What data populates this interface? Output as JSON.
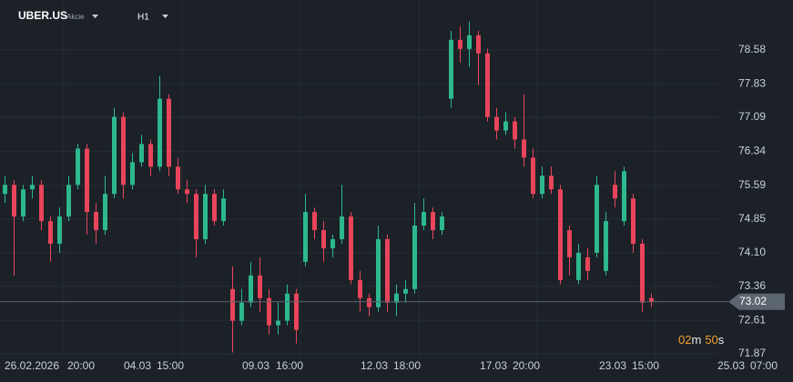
{
  "chart_data": {
    "type": "candlestick",
    "symbol": "UBER.US",
    "instrument_type": "Akcie",
    "timeframe": "H1",
    "up_color": "#2db88e",
    "down_color": "#e8455b",
    "open": [
      75.4,
      75.6,
      74.9,
      75.5,
      75.6,
      74.8,
      74.3,
      74.9,
      75.6,
      76.4,
      75.0,
      74.6,
      75.4,
      77.1,
      75.6,
      76.1,
      76.5,
      76.0,
      77.5,
      76.0,
      75.5,
      75.4,
      74.4,
      75.4,
      74.8,
      73.3,
      72.6,
      73.0,
      73.6,
      73.1,
      72.5,
      72.6,
      73.2,
      73.9,
      75.0,
      74.6,
      74.2,
      74.4,
      74.9,
      73.5,
      73.1,
      72.9,
      74.4,
      73.0,
      73.2,
      73.3,
      74.7,
      75.0,
      74.6,
      77.5,
      78.8,
      78.6,
      78.9,
      78.5,
      77.1,
      76.8,
      77.0,
      76.6,
      76.2,
      75.4,
      75.8,
      75.5,
      74.6,
      73.5,
      74.0,
      74.1,
      73.7,
      75.6,
      74.8,
      75.3,
      74.3,
      73.1
    ],
    "high": [
      75.8,
      75.7,
      75.6,
      75.8,
      75.7,
      74.9,
      75.1,
      75.8,
      76.5,
      76.5,
      75.2,
      75.8,
      77.3,
      77.2,
      76.3,
      76.7,
      76.6,
      78.0,
      77.6,
      76.2,
      75.7,
      75.5,
      75.6,
      75.5,
      75.5,
      73.8,
      73.3,
      73.9,
      74.0,
      73.3,
      73.0,
      73.4,
      73.3,
      75.4,
      75.1,
      74.8,
      74.5,
      75.6,
      75.0,
      73.7,
      73.2,
      74.7,
      74.5,
      73.4,
      73.5,
      75.2,
      75.3,
      75.1,
      75.0,
      79.0,
      79.1,
      79.2,
      79.0,
      78.6,
      77.3,
      77.2,
      77.1,
      77.6,
      76.4,
      76.0,
      76.0,
      75.6,
      74.7,
      74.3,
      74.2,
      75.8,
      75.0,
      75.9,
      76.0,
      75.4,
      74.4,
      73.2
    ],
    "low": [
      75.2,
      73.6,
      74.8,
      75.3,
      74.6,
      73.9,
      74.1,
      74.8,
      75.5,
      74.5,
      74.3,
      74.5,
      75.3,
      75.3,
      75.5,
      76.0,
      75.8,
      75.9,
      75.8,
      75.4,
      75.2,
      74.0,
      74.3,
      74.7,
      74.7,
      71.9,
      72.5,
      72.9,
      72.8,
      72.3,
      72.3,
      72.5,
      72.1,
      73.8,
      74.4,
      73.9,
      74.0,
      74.3,
      73.4,
      72.8,
      72.7,
      72.8,
      72.8,
      72.7,
      73.0,
      73.2,
      74.6,
      74.4,
      74.5,
      77.3,
      78.3,
      78.2,
      77.8,
      77.0,
      76.6,
      76.7,
      76.4,
      76.0,
      75.3,
      75.3,
      75.4,
      73.4,
      73.6,
      73.4,
      73.5,
      74.0,
      73.6,
      75.1,
      74.7,
      74.1,
      72.8,
      72.9
    ],
    "close": [
      75.6,
      74.9,
      75.5,
      75.6,
      74.8,
      74.3,
      74.9,
      75.6,
      76.4,
      75.0,
      74.6,
      75.4,
      77.1,
      75.6,
      76.1,
      76.5,
      76.0,
      77.5,
      76.0,
      75.5,
      75.4,
      74.4,
      75.4,
      74.8,
      75.3,
      72.6,
      73.0,
      73.6,
      73.1,
      72.5,
      72.6,
      73.2,
      72.4,
      75.0,
      74.6,
      74.2,
      74.4,
      74.9,
      73.5,
      73.1,
      72.9,
      74.4,
      73.0,
      73.2,
      73.3,
      74.7,
      75.0,
      74.6,
      74.9,
      78.8,
      78.6,
      78.9,
      78.5,
      77.1,
      76.8,
      77.0,
      76.6,
      76.2,
      75.4,
      75.8,
      75.5,
      73.5,
      74.0,
      74.1,
      73.7,
      75.6,
      74.8,
      75.3,
      75.9,
      74.3,
      73.0,
      73.02
    ],
    "current_price": 73.02,
    "ylim": [
      71.75,
      79.68
    ],
    "yticks": [
      78.58,
      77.83,
      77.09,
      76.34,
      75.59,
      74.85,
      {
        "value": 74.1,
        "label": "74.10"
      },
      73.36,
      72.61,
      71.87
    ],
    "x_labels": [
      "26.02.2026",
      "20:00",
      "04.03",
      "15:00",
      "09.03",
      "16:00",
      "12.03",
      "18:00",
      "17.03",
      "20:00",
      "23.03",
      "15:00",
      "25.03",
      "07:00"
    ],
    "countdown": {
      "minutes": "02",
      "minutes_unit": "m",
      "seconds": "50",
      "seconds_unit": "s"
    },
    "grid": true
  }
}
